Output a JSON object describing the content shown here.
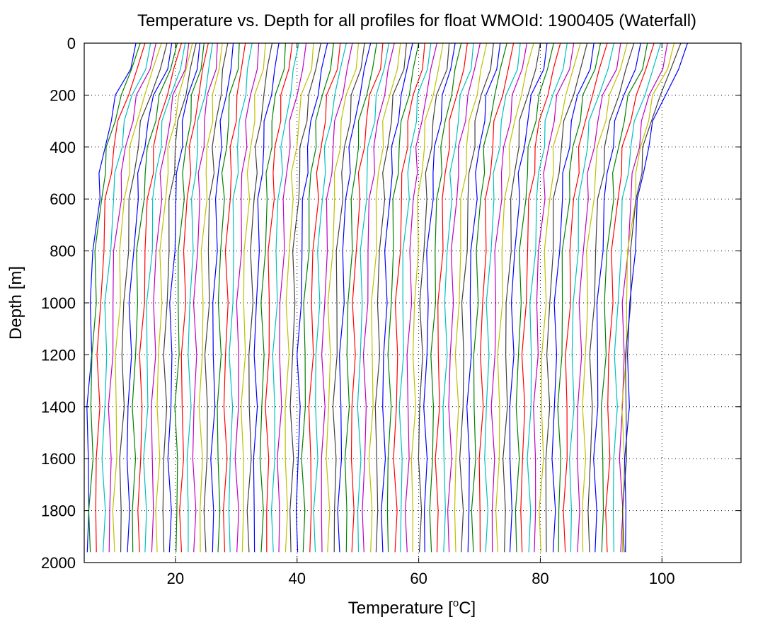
{
  "chart_data": {
    "type": "line",
    "title": "Temperature vs. Depth for all profiles for float WMOId: 1900405 (Waterfall)",
    "xlabel_prefix": "Temperature [",
    "xlabel_sup": "o",
    "xlabel_suffix": "C]",
    "ylabel": "Depth [m]",
    "xlim": [
      5,
      113
    ],
    "ylim": [
      0,
      2000
    ],
    "y_reversed": true,
    "grid": true,
    "grid_style": "dotted",
    "x_ticks": [
      20,
      40,
      60,
      80,
      100
    ],
    "y_ticks": [
      0,
      200,
      400,
      600,
      800,
      1000,
      1200,
      1400,
      1600,
      1800,
      2000
    ],
    "series_colors": [
      "#0000ff",
      "#008000",
      "#ff0000",
      "#00bfbf",
      "#bf00bf",
      "#bfbf00",
      "#404040"
    ],
    "series_count": 92,
    "profile_depths_m": [
      0,
      100,
      200,
      300,
      400,
      500,
      600,
      800,
      1000,
      1200,
      1400,
      1600,
      1800,
      1960
    ],
    "series_x_at_1960m": [
      5.5,
      6.0,
      7.0,
      8.1,
      9.1,
      10.0,
      11.0,
      12.1,
      13.0,
      14.1,
      15.0,
      16.1,
      17.0,
      18.1,
      19.0,
      20.1,
      21.0,
      22.1,
      23.0,
      24.1,
      25.0,
      26.1,
      27.0,
      28.1,
      29.0,
      30.1,
      31.0,
      32.1,
      33.0,
      34.1,
      35.0,
      36.1,
      37.0,
      38.1,
      39.0,
      40.1,
      41.0,
      42.1,
      43.0,
      44.1,
      45.0,
      46.1,
      47.0,
      48.1,
      49.0,
      50.1,
      51.0,
      52.1,
      53.0,
      54.1,
      55.0,
      56.1,
      57.0,
      58.1,
      59.0,
      60.1,
      61.0,
      62.1,
      63.0,
      64.1,
      65.0,
      66.1,
      67.0,
      68.1,
      69.0,
      70.1,
      71.0,
      72.1,
      73.0,
      74.1,
      75.0,
      76.1,
      77.0,
      78.1,
      79.0,
      80.1,
      81.0,
      82.1,
      83.0,
      84.1,
      85.0,
      86.1,
      87.0,
      88.1,
      89.0,
      90.1,
      91.0,
      92.1,
      93.2,
      93.5,
      93.8,
      94.0
    ],
    "series_x_at_0m": [
      13.5,
      14.2,
      15.0,
      15.9,
      16.8,
      17.7,
      18.6,
      19.4,
      20.3,
      21.0,
      21.6,
      22.2,
      22.8,
      23.4,
      24.0,
      24.7,
      25.4,
      26.1,
      26.9,
      27.7,
      28.6,
      29.5,
      30.5,
      31.5,
      32.6,
      33.7,
      34.8,
      35.9,
      37.0,
      38.1,
      39.2,
      40.3,
      41.5,
      42.7,
      43.9,
      45.0,
      46.0,
      47.1,
      48.1,
      49.1,
      50.1,
      51.1,
      52.1,
      53.1,
      54.1,
      55.1,
      56.0,
      57.0,
      58.0,
      59.0,
      60.0,
      61.0,
      62.0,
      63.0,
      64.0,
      65.0,
      66.0,
      67.0,
      68.0,
      69.0,
      70.1,
      71.2,
      72.3,
      73.4,
      74.5,
      75.6,
      76.7,
      77.8,
      78.9,
      80.0,
      81.1,
      82.2,
      83.3,
      84.4,
      85.5,
      86.6,
      87.7,
      88.8,
      89.9,
      91.0,
      92.1,
      93.2,
      94.3,
      95.4,
      96.5,
      97.6,
      98.7,
      99.8,
      100.9,
      102.0,
      103.1,
      104.2
    ]
  }
}
